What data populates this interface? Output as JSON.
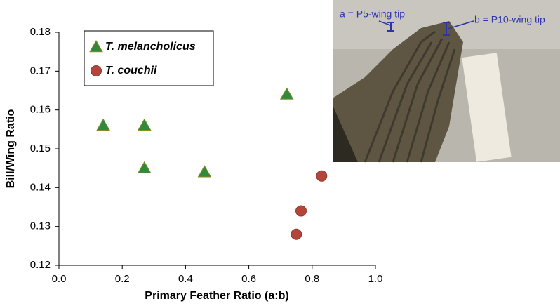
{
  "chart_data": {
    "type": "scatter",
    "x_label": "Primary Feather Ratio (a:b)",
    "y_label": "Bill/Wing Ratio",
    "xlim": [
      0,
      1
    ],
    "ylim": [
      0.12,
      0.18
    ],
    "xticks": [
      {
        "value": 0,
        "label": "0.0"
      },
      0.2,
      0.4,
      0.6,
      0.8,
      {
        "value": 1,
        "label": "1.0"
      }
    ],
    "yticks": [
      0.12,
      0.13,
      0.14,
      0.15,
      0.16,
      0.17,
      0.18
    ],
    "series": [
      {
        "name": "T. melancholicus",
        "color": "#2e8b3e",
        "marker": "triangle",
        "x": [
          0.14,
          0.27,
          0.27,
          0.46,
          0.72
        ],
        "values": [
          0.156,
          0.156,
          0.145,
          0.144,
          0.164
        ]
      },
      {
        "name": "T. couchii",
        "color": "#b5453b",
        "marker": "circle",
        "x": [
          0.83,
          0.765,
          0.75
        ],
        "values": [
          0.143,
          0.134,
          0.128
        ]
      }
    ],
    "annotations": [
      "a = P5-wing tip",
      "b = P10-wing tip"
    ]
  }
}
